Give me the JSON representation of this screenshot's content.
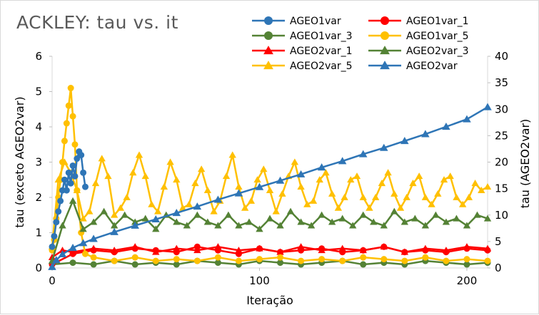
{
  "chart_data": {
    "type": "line",
    "title": "ACKLEY: tau vs. it",
    "xlabel": "Iteração",
    "ylabel": "tau (exceto AGEO2var)",
    "y2label": "tau (AGEO2var)",
    "xlim": [
      0,
      210
    ],
    "ylim": [
      0,
      6
    ],
    "y2lim": [
      0,
      40
    ],
    "xticks": [
      "0",
      "100",
      "200"
    ],
    "yticks": [
      "0",
      "1",
      "2",
      "3",
      "4",
      "5",
      "6"
    ],
    "y2ticks": [
      "0",
      "5",
      "10",
      "15",
      "20",
      "25",
      "30",
      "35",
      "40"
    ],
    "legend_position": "top-right",
    "grid": false,
    "series": [
      {
        "name": "AGEO1var",
        "axis": "left",
        "color": "#2e75b6",
        "marker": "circle",
        "x": [
          0,
          1,
          2,
          3,
          4,
          5,
          6,
          7,
          8,
          9,
          10,
          11,
          12,
          13,
          14,
          15,
          16
        ],
        "values": [
          0.6,
          0.9,
          1.3,
          1.6,
          1.9,
          2.2,
          2.5,
          2.2,
          2.7,
          2.4,
          2.9,
          2.6,
          3.1,
          3.3,
          3.2,
          2.7,
          2.3
        ]
      },
      {
        "name": "AGEO1var_1",
        "axis": "left",
        "color": "#ff0000",
        "marker": "circle",
        "x": [
          0,
          10,
          20,
          30,
          40,
          50,
          60,
          70,
          80,
          90,
          100,
          110,
          120,
          130,
          140,
          150,
          160,
          170,
          180,
          190,
          200,
          210
        ],
        "values": [
          0.1,
          0.4,
          0.5,
          0.45,
          0.55,
          0.5,
          0.45,
          0.6,
          0.5,
          0.4,
          0.55,
          0.45,
          0.5,
          0.55,
          0.45,
          0.5,
          0.6,
          0.45,
          0.5,
          0.45,
          0.55,
          0.5
        ]
      },
      {
        "name": "AGEO1var_3",
        "axis": "left",
        "color": "#548235",
        "marker": "circle",
        "x": [
          0,
          10,
          20,
          30,
          40,
          50,
          60,
          70,
          80,
          90,
          100,
          110,
          120,
          130,
          140,
          150,
          160,
          170,
          180,
          190,
          200,
          210
        ],
        "values": [
          0.1,
          0.15,
          0.1,
          0.2,
          0.1,
          0.15,
          0.1,
          0.2,
          0.15,
          0.1,
          0.2,
          0.15,
          0.1,
          0.15,
          0.2,
          0.1,
          0.15,
          0.1,
          0.2,
          0.15,
          0.1,
          0.15
        ]
      },
      {
        "name": "AGEO1var_5",
        "axis": "left",
        "color": "#ffc000",
        "marker": "circle",
        "x": [
          0,
          1,
          2,
          3,
          4,
          5,
          6,
          7,
          8,
          9,
          10,
          11,
          12,
          14,
          16,
          20,
          30,
          40,
          50,
          60,
          70,
          80,
          90,
          100,
          110,
          120,
          130,
          140,
          150,
          160,
          170,
          180,
          190,
          200,
          210
        ],
        "values": [
          0.5,
          0.8,
          1.4,
          2.0,
          2.5,
          3.0,
          3.6,
          4.1,
          4.6,
          5.1,
          4.3,
          3.5,
          2.2,
          1.0,
          0.4,
          0.3,
          0.2,
          0.3,
          0.2,
          0.25,
          0.2,
          0.3,
          0.2,
          0.25,
          0.3,
          0.2,
          0.25,
          0.2,
          0.3,
          0.25,
          0.2,
          0.3,
          0.2,
          0.25,
          0.2
        ]
      },
      {
        "name": "AGEO2var_1",
        "axis": "left",
        "color": "#ff0000",
        "marker": "triangle",
        "x": [
          0,
          5,
          10,
          20,
          30,
          40,
          50,
          60,
          70,
          80,
          90,
          100,
          110,
          120,
          130,
          140,
          150,
          160,
          170,
          180,
          190,
          200,
          210
        ],
        "values": [
          0.3,
          0.5,
          0.45,
          0.55,
          0.5,
          0.6,
          0.45,
          0.55,
          0.5,
          0.6,
          0.5,
          0.55,
          0.45,
          0.6,
          0.5,
          0.55,
          0.5,
          0.6,
          0.45,
          0.55,
          0.5,
          0.6,
          0.55
        ]
      },
      {
        "name": "AGEO2var_3",
        "axis": "left",
        "color": "#548235",
        "marker": "triangle",
        "x": [
          0,
          5,
          10,
          15,
          20,
          25,
          30,
          35,
          40,
          45,
          50,
          55,
          60,
          65,
          70,
          75,
          80,
          85,
          90,
          95,
          100,
          105,
          110,
          115,
          120,
          125,
          130,
          135,
          140,
          145,
          150,
          155,
          160,
          165,
          170,
          175,
          180,
          185,
          190,
          195,
          200,
          205,
          210
        ],
        "values": [
          0.2,
          1.2,
          1.9,
          1.1,
          1.3,
          1.6,
          1.2,
          1.5,
          1.3,
          1.4,
          1.1,
          1.5,
          1.3,
          1.2,
          1.5,
          1.3,
          1.2,
          1.5,
          1.2,
          1.3,
          1.1,
          1.4,
          1.2,
          1.6,
          1.3,
          1.2,
          1.5,
          1.3,
          1.4,
          1.2,
          1.5,
          1.3,
          1.2,
          1.6,
          1.3,
          1.4,
          1.2,
          1.5,
          1.3,
          1.4,
          1.2,
          1.5,
          1.4
        ]
      },
      {
        "name": "AGEO2var_5",
        "axis": "left",
        "color": "#ffc000",
        "marker": "triangle",
        "x": [
          0,
          3,
          6,
          9,
          12,
          15,
          18,
          21,
          24,
          27,
          30,
          33,
          36,
          39,
          42,
          45,
          48,
          51,
          54,
          57,
          60,
          63,
          66,
          69,
          72,
          75,
          78,
          81,
          84,
          87,
          90,
          93,
          96,
          99,
          102,
          105,
          108,
          111,
          114,
          117,
          120,
          123,
          126,
          129,
          132,
          135,
          138,
          141,
          144,
          147,
          150,
          153,
          156,
          159,
          162,
          165,
          168,
          171,
          174,
          177,
          180,
          183,
          186,
          189,
          192,
          195,
          198,
          201,
          204,
          207,
          210
        ],
        "values": [
          0.6,
          2.5,
          3.0,
          2.7,
          2.2,
          1.4,
          1.6,
          2.4,
          3.1,
          2.6,
          1.5,
          1.7,
          2.0,
          2.7,
          3.2,
          2.6,
          1.8,
          1.6,
          2.3,
          3.0,
          2.5,
          1.7,
          1.8,
          2.4,
          2.8,
          2.2,
          1.6,
          1.9,
          2.6,
          3.2,
          2.3,
          1.7,
          1.9,
          2.5,
          2.8,
          2.2,
          1.6,
          2.1,
          2.6,
          3.0,
          2.3,
          1.8,
          1.9,
          2.5,
          2.7,
          2.1,
          1.7,
          2.0,
          2.5,
          2.6,
          2.0,
          1.7,
          2.0,
          2.4,
          2.7,
          2.1,
          1.7,
          2.0,
          2.4,
          2.6,
          2.0,
          1.8,
          2.1,
          2.5,
          2.6,
          2.0,
          1.8,
          2.0,
          2.4,
          2.2,
          2.3
        ]
      },
      {
        "name": "AGEO2var",
        "axis": "right",
        "color": "#2e75b6",
        "marker": "triangle",
        "x": [
          0,
          2,
          5,
          10,
          15,
          20,
          30,
          40,
          50,
          60,
          70,
          80,
          90,
          100,
          110,
          120,
          130,
          140,
          150,
          160,
          170,
          180,
          190,
          200,
          210
        ],
        "values": [
          0.2,
          1.5,
          2.6,
          3.8,
          4.7,
          5.5,
          6.8,
          8.0,
          9.2,
          10.4,
          11.6,
          12.9,
          14.1,
          15.3,
          16.5,
          17.7,
          19.0,
          20.2,
          21.5,
          22.7,
          24.0,
          25.3,
          26.7,
          28.1,
          30.4
        ]
      }
    ]
  }
}
